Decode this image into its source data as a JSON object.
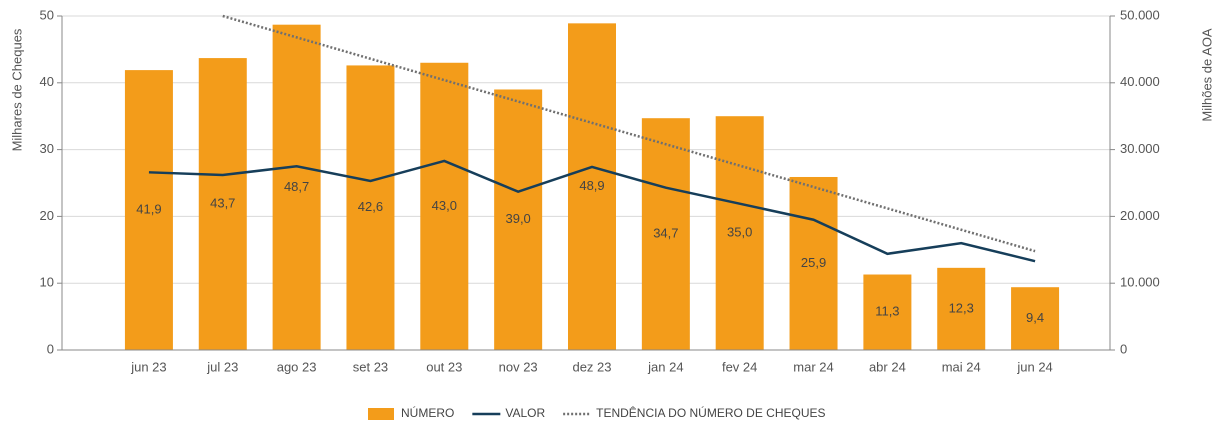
{
  "chart_data": {
    "type": "bar",
    "categories": [
      "jun 23",
      "jul 23",
      "ago 23",
      "set 23",
      "out 23",
      "nov 23",
      "dez 23",
      "jan 24",
      "fev 24",
      "mar 24",
      "abr 24",
      "mai 24",
      "jun 24"
    ],
    "series": [
      {
        "name": "NÚMERO",
        "type": "bar",
        "color": "#f39c1a",
        "values": [
          41.9,
          43.7,
          48.7,
          42.6,
          43.0,
          39.0,
          48.9,
          34.7,
          35.0,
          25.9,
          11.3,
          12.3,
          9.4
        ],
        "value_labels": [
          "41,9",
          "43,7",
          "48,7",
          "42,6",
          "43,0",
          "39,0",
          "48,9",
          "34,7",
          "35,0",
          "25,9",
          "11,3",
          "12,3",
          "9,4"
        ]
      },
      {
        "name": "VALOR",
        "type": "line",
        "axis": "y2",
        "color": "#163e5a",
        "values": [
          26600,
          26200,
          27500,
          25300,
          28300,
          23700,
          27400,
          24300,
          21900,
          19500,
          14400,
          16000,
          13300
        ]
      },
      {
        "name": "TENDÊNCIA DO NÚMERO DE CHEQUES",
        "type": "line",
        "dashed": true,
        "color": "#707070",
        "values": [
          null,
          50.0,
          46.8,
          43.6,
          40.4,
          37.2,
          34.0,
          30.8,
          27.6,
          24.4,
          21.2,
          18.0,
          14.8
        ]
      }
    ],
    "ylabel": "Milhares de Cheques",
    "y2label": "Milhões de AOA",
    "ylim": [
      0,
      50
    ],
    "yticks": [
      0,
      10,
      20,
      30,
      40,
      50
    ],
    "y2lim": [
      0,
      50000
    ],
    "y2ticks": [
      0,
      {
        "value": 10000,
        "label": "10.000"
      },
      {
        "value": 20000,
        "label": "20.000"
      },
      {
        "value": 30000,
        "label": "30.000"
      },
      {
        "value": 40000,
        "label": "40.000"
      },
      {
        "value": 50000,
        "label": "50.000"
      }
    ],
    "grid": true,
    "legend": "bottom"
  }
}
